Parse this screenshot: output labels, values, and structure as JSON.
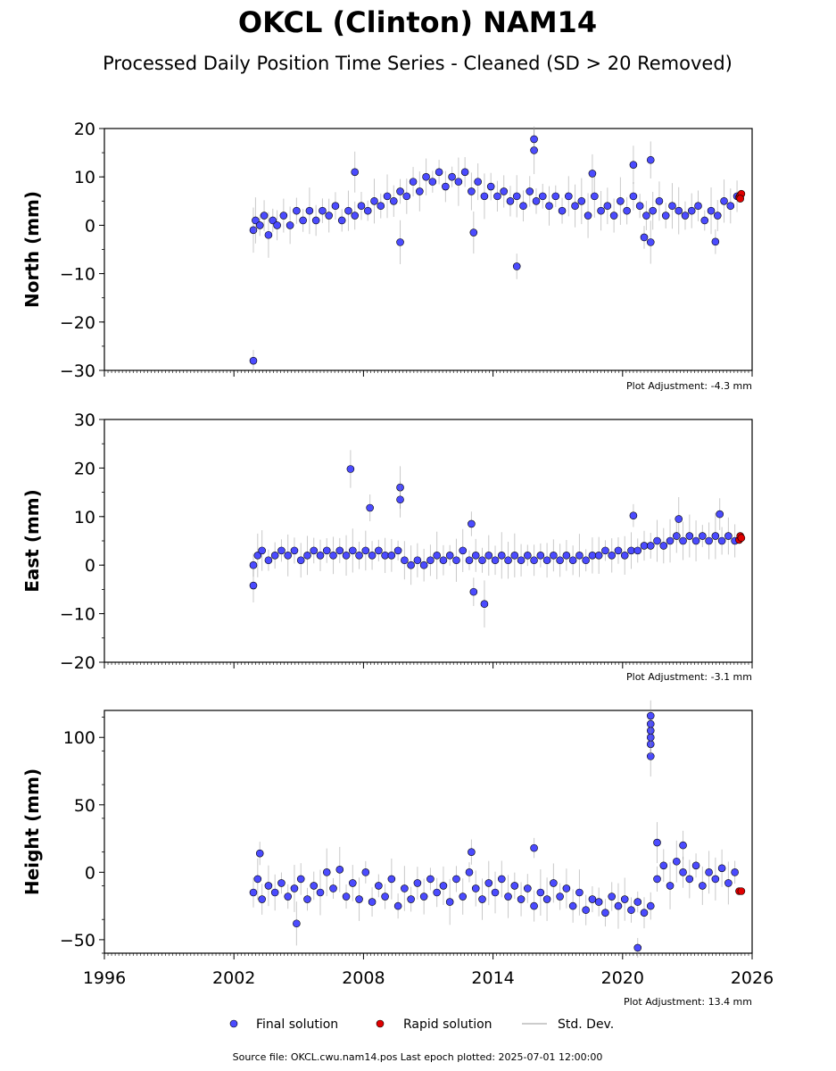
{
  "title": "OKCL (Clinton) NAM14",
  "subtitle": "Processed Daily Position Time Series - Cleaned (SD > 20 Removed)",
  "footer": "Source file: OKCL.cwu.nam14.pos  Last epoch plotted: 2025-07-01 12:00:00",
  "legend": {
    "final_label": "Final solution",
    "rapid_label": "Rapid solution",
    "std_label": "Std. Dev.",
    "placement": "bottom-center"
  },
  "colors": {
    "final": "#4b4bff",
    "rapid": "#e00000",
    "std": "#888888",
    "marker_edge": "#000000"
  },
  "chart_data": [
    {
      "type": "scatter",
      "ylabel": "North (mm)",
      "ylim": [
        -30,
        20
      ],
      "yticks": [
        20,
        10,
        0,
        -10,
        -20,
        -30
      ],
      "ytick_labels": [
        "20",
        "10",
        "0",
        "−10",
        "−20",
        "−30"
      ],
      "xlim": [
        1996,
        2026
      ],
      "xtick_labels": [],
      "adjustment": "Plot Adjustment: -4.3 mm",
      "series": [
        {
          "name": "Final solution",
          "x": [
            2002.9,
            2003.0,
            2003.2,
            2003.4,
            2003.6,
            2003.8,
            2004.0,
            2004.3,
            2004.6,
            2004.9,
            2005.2,
            2005.5,
            2005.8,
            2006.1,
            2006.4,
            2006.7,
            2007.0,
            2007.3,
            2007.6,
            2007.9,
            2008.2,
            2008.5,
            2008.8,
            2009.1,
            2009.4,
            2009.7,
            2010.0,
            2010.3,
            2010.6,
            2010.9,
            2011.2,
            2011.5,
            2011.8,
            2012.1,
            2012.4,
            2012.7,
            2013.0,
            2013.3,
            2013.6,
            2013.9,
            2014.2,
            2014.5,
            2014.8,
            2015.1,
            2015.4,
            2015.7,
            2016.0,
            2016.3,
            2016.6,
            2016.9,
            2017.2,
            2017.5,
            2017.8,
            2018.1,
            2018.4,
            2018.7,
            2019.0,
            2019.3,
            2019.6,
            2019.9,
            2020.2,
            2020.5,
            2020.8,
            2021.1,
            2021.4,
            2021.7,
            2022.0,
            2022.3,
            2022.6,
            2022.9,
            2023.2,
            2023.5,
            2023.8,
            2024.1,
            2024.4,
            2024.7,
            2025.0,
            2025.3,
            2002.9,
            2007.6,
            2009.7,
            2015.1,
            2015.9,
            2015.9,
            2018.6,
            2020.5,
            2021.3,
            2021.3,
            2024.3,
            2013.1,
            2021.0
          ],
          "y": [
            -1,
            1,
            0,
            2,
            -2,
            1,
            0,
            2,
            0,
            3,
            1,
            3,
            1,
            3,
            2,
            4,
            1,
            3,
            2,
            4,
            3,
            5,
            4,
            6,
            5,
            7,
            6,
            9,
            7,
            10,
            9,
            11,
            8,
            10,
            9,
            11,
            7,
            9,
            6,
            8,
            6,
            7,
            5,
            6,
            4,
            7,
            5,
            6,
            4,
            6,
            3,
            6,
            4,
            5,
            2,
            6,
            3,
            4,
            2,
            5,
            3,
            6,
            4,
            2,
            3,
            5,
            2,
            4,
            3,
            2,
            3,
            4,
            1,
            3,
            2,
            5,
            4,
            6,
            -28,
            11,
            -3.5,
            -8.5,
            15.5,
            17.8,
            10.7,
            12.5,
            13.5,
            -3.5,
            -3.4,
            -1.5,
            -2.5
          ]
        },
        {
          "name": "Rapid solution",
          "x": [
            2025.4,
            2025.45,
            2025.5,
            2025.45
          ],
          "y": [
            5.8,
            6.2,
            6.5,
            5.5
          ]
        }
      ]
    },
    {
      "type": "scatter",
      "ylabel": "East (mm)",
      "ylim": [
        -20,
        30
      ],
      "yticks": [
        30,
        20,
        10,
        0,
        -10,
        -20
      ],
      "ytick_labels": [
        "30",
        "20",
        "10",
        "0",
        "−10",
        "−20"
      ],
      "xlim": [
        1996,
        2026
      ],
      "xtick_labels": [],
      "adjustment": "Plot Adjustment: -3.1 mm",
      "series": [
        {
          "name": "Final solution",
          "x": [
            2002.9,
            2003.1,
            2003.3,
            2003.6,
            2003.9,
            2004.2,
            2004.5,
            2004.8,
            2005.1,
            2005.4,
            2005.7,
            2006.0,
            2006.3,
            2006.6,
            2006.9,
            2007.2,
            2007.5,
            2007.8,
            2008.1,
            2008.4,
            2008.7,
            2009.0,
            2009.3,
            2009.6,
            2009.9,
            2010.2,
            2010.5,
            2010.8,
            2011.1,
            2011.4,
            2011.7,
            2012.0,
            2012.3,
            2012.6,
            2012.9,
            2013.2,
            2013.5,
            2013.8,
            2014.1,
            2014.4,
            2014.7,
            2015.0,
            2015.3,
            2015.6,
            2015.9,
            2016.2,
            2016.5,
            2016.8,
            2017.1,
            2017.4,
            2017.7,
            2018.0,
            2018.3,
            2018.6,
            2018.9,
            2019.2,
            2019.5,
            2019.8,
            2020.1,
            2020.4,
            2020.7,
            2021.0,
            2021.3,
            2021.6,
            2021.9,
            2022.2,
            2022.5,
            2022.8,
            2023.1,
            2023.4,
            2023.7,
            2024.0,
            2024.3,
            2024.6,
            2024.9,
            2025.2,
            2007.4,
            2008.3,
            2009.7,
            2009.7,
            2013.6,
            2013.1,
            2002.9,
            2020.5,
            2024.5,
            2022.6,
            2013.0
          ],
          "y": [
            0,
            2,
            3,
            1,
            2,
            3,
            2,
            3,
            1,
            2,
            3,
            2,
            3,
            2,
            3,
            2,
            3,
            2,
            3,
            2,
            3,
            2,
            2,
            3,
            1,
            0,
            1,
            0,
            1,
            2,
            1,
            2,
            1,
            3,
            1,
            2,
            1,
            2,
            1,
            2,
            1,
            2,
            1,
            2,
            1,
            2,
            1,
            2,
            1,
            2,
            1,
            2,
            1,
            2,
            2,
            3,
            2,
            3,
            2,
            3,
            3,
            4,
            4,
            5,
            4,
            5,
            6,
            5,
            6,
            5,
            6,
            5,
            6,
            5,
            6,
            5,
            19.8,
            11.8,
            16,
            13.5,
            -8,
            -5.5,
            -4.2,
            10.2,
            10.5,
            9.5,
            8.5
          ]
        },
        {
          "name": "Rapid solution",
          "x": [
            2025.4,
            2025.45,
            2025.5
          ],
          "y": [
            5.2,
            6.0,
            5.6
          ]
        }
      ]
    },
    {
      "type": "scatter",
      "ylabel": "Height (mm)",
      "ylim": [
        -60,
        120
      ],
      "yticks": [
        100,
        50,
        0,
        -50
      ],
      "ytick_labels": [
        "100",
        "50",
        "0",
        "−50"
      ],
      "xlim": [
        1996,
        2026
      ],
      "xtick_labels": [
        "1996",
        "2002",
        "2008",
        "2014",
        "2020",
        "2026"
      ],
      "adjustment": "Plot Adjustment: 13.4 mm",
      "series": [
        {
          "name": "Final solution",
          "x": [
            2002.9,
            2003.1,
            2003.3,
            2003.6,
            2003.9,
            2004.2,
            2004.5,
            2004.8,
            2005.1,
            2005.4,
            2005.7,
            2006.0,
            2006.3,
            2006.6,
            2006.9,
            2007.2,
            2007.5,
            2007.8,
            2008.1,
            2008.4,
            2008.7,
            2009.0,
            2009.3,
            2009.6,
            2009.9,
            2010.2,
            2010.5,
            2010.8,
            2011.1,
            2011.4,
            2011.7,
            2012.0,
            2012.3,
            2012.6,
            2012.9,
            2013.2,
            2013.5,
            2013.8,
            2014.1,
            2014.4,
            2014.7,
            2015.0,
            2015.3,
            2015.6,
            2015.9,
            2016.2,
            2016.5,
            2016.8,
            2017.1,
            2017.4,
            2017.7,
            2018.0,
            2018.3,
            2018.6,
            2018.9,
            2019.2,
            2019.5,
            2019.8,
            2020.1,
            2020.4,
            2020.7,
            2021.0,
            2021.3,
            2021.6,
            2021.9,
            2022.2,
            2022.5,
            2022.8,
            2023.1,
            2023.4,
            2023.7,
            2024.0,
            2024.3,
            2024.6,
            2024.9,
            2025.2,
            2021.3,
            2021.3,
            2021.3,
            2021.3,
            2021.3,
            2021.3,
            2020.7,
            2003.2,
            2013.0,
            2015.9,
            2021.6,
            2022.8,
            2004.9
          ],
          "y": [
            -15,
            -5,
            -20,
            -10,
            -15,
            -8,
            -18,
            -12,
            -5,
            -20,
            -10,
            -15,
            0,
            -12,
            2,
            -18,
            -8,
            -20,
            0,
            -22,
            -10,
            -18,
            -5,
            -25,
            -12,
            -20,
            -8,
            -18,
            -5,
            -15,
            -10,
            -22,
            -5,
            -18,
            0,
            -12,
            -20,
            -8,
            -15,
            -5,
            -18,
            -10,
            -20,
            -12,
            -25,
            -15,
            -20,
            -8,
            -18,
            -12,
            -25,
            -15,
            -28,
            -20,
            -22,
            -30,
            -18,
            -25,
            -20,
            -28,
            -22,
            -30,
            -25,
            -5,
            5,
            -10,
            8,
            0,
            -5,
            5,
            -10,
            0,
            -5,
            3,
            -8,
            0,
            86,
            95,
            100,
            105,
            110,
            116,
            -56,
            14,
            15,
            18,
            22,
            20,
            -38
          ]
        },
        {
          "name": "Rapid solution",
          "x": [
            2025.4,
            2025.5
          ],
          "y": [
            -14,
            -14
          ]
        }
      ]
    }
  ]
}
